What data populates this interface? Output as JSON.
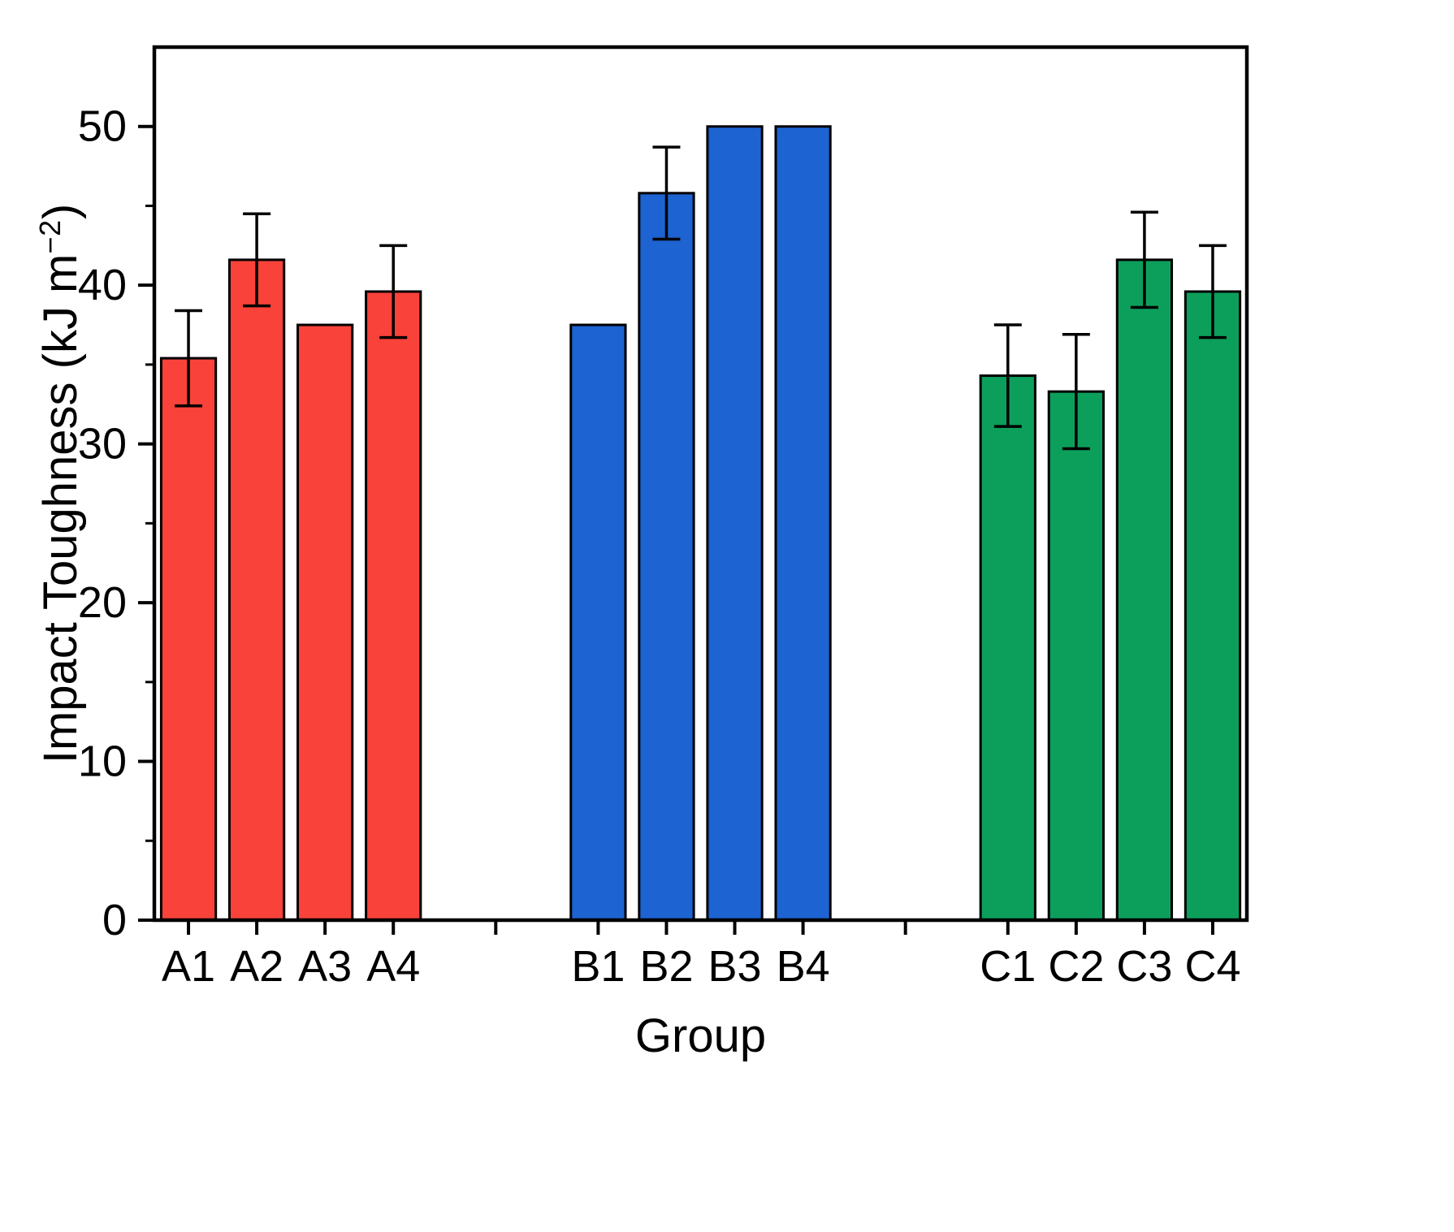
{
  "chart_data": {
    "type": "bar",
    "title": "",
    "xlabel": "Group",
    "ylabel_prefix": "Impact Toughness (kJ m",
    "ylabel_sup": "−2",
    "ylabel_suffix": ")",
    "ylim": [
      0,
      55
    ],
    "yticks": [
      0,
      10,
      20,
      30,
      40,
      50
    ],
    "y_minor_step": 5,
    "grid": false,
    "legend": "none",
    "axis_color": "#000000",
    "categories": [
      "A1",
      "A2",
      "A3",
      "A4",
      "B1",
      "B2",
      "B3",
      "B4",
      "C1",
      "C2",
      "C3",
      "C4"
    ],
    "groups": [
      {
        "name": "A",
        "color": "#f8423a",
        "bars": [
          {
            "label": "A1",
            "value": 35.4,
            "error": 3.0
          },
          {
            "label": "A2",
            "value": 41.6,
            "error": 2.9
          },
          {
            "label": "A3",
            "value": 37.5,
            "error": 0
          },
          {
            "label": "A4",
            "value": 39.6,
            "error": 2.9
          }
        ]
      },
      {
        "name": "B",
        "color": "#1d63d1",
        "bars": [
          {
            "label": "B1",
            "value": 37.5,
            "error": 0
          },
          {
            "label": "B2",
            "value": 45.8,
            "error": 2.9
          },
          {
            "label": "B3",
            "value": 50.0,
            "error": 0
          },
          {
            "label": "B4",
            "value": 50.0,
            "error": 0
          }
        ]
      },
      {
        "name": "C",
        "color": "#0c9f5c",
        "bars": [
          {
            "label": "C1",
            "value": 34.3,
            "error": 3.2
          },
          {
            "label": "C2",
            "value": 33.3,
            "error": 3.6
          },
          {
            "label": "C3",
            "value": 41.6,
            "error": 3.0
          },
          {
            "label": "C4",
            "value": 39.6,
            "error": 2.9
          }
        ]
      }
    ]
  }
}
